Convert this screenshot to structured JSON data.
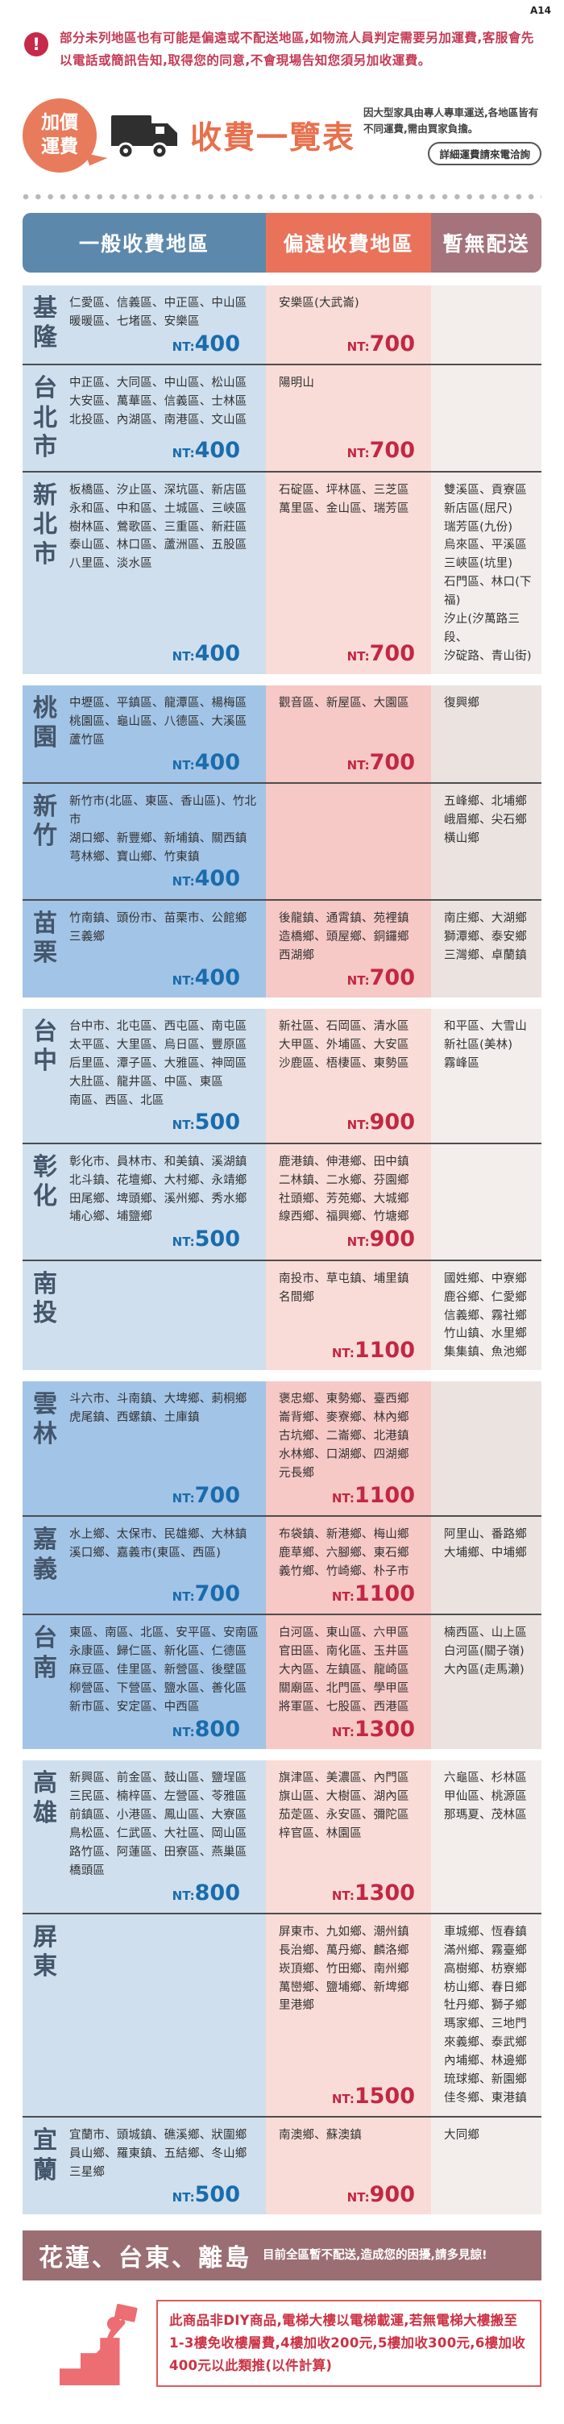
{
  "page_label": "A14",
  "warning": {
    "icon_glyph": "!",
    "text": "部分未列地區也有可能是偏遠或不配送地區,如物流人員判定需要另加運費,客服會先以電話或簡訊告知,取得您的同意,不會現場告知您須另加收運費。"
  },
  "header": {
    "badge": "加價\n運費",
    "title": "收費一覽表",
    "subtitle": "因大型家具由專人專車運送,各地區皆有不同運費,需由買家負擔。",
    "contact_pill": "詳細運費請來電洽詢"
  },
  "table": {
    "currency_prefix": "NT:",
    "columns": [
      "一般收費地區",
      "偏遠收費地區",
      "暫無配送"
    ],
    "groups": [
      {
        "shade": "light",
        "rows": [
          {
            "region": "基隆",
            "general": "仁愛區、信義區、中正區、中山區\n暖暖區、七堵區、安樂區",
            "general_price": "400",
            "remote": "安樂區(大武崙)",
            "remote_price": "700",
            "no_delivery": ""
          },
          {
            "region": "台北市",
            "general": "中正區、大同區、中山區、松山區\n大安區、萬華區、信義區、士林區\n北投區、內湖區、南港區、文山區",
            "general_price": "400",
            "remote": "陽明山",
            "remote_price": "700",
            "no_delivery": ""
          },
          {
            "region": "新北市",
            "general": "板橋區、汐止區、深坑區、新店區\n永和區、中和區、土城區、三峽區\n樹林區、鶯歌區、三重區、新莊區\n泰山區、林口區、蘆洲區、五股區\n八里區、淡水區",
            "general_price": "400",
            "remote": "石碇區、坪林區、三芝區\n萬里區、金山區、瑞芳區",
            "remote_price": "700",
            "no_delivery": "雙溪區、貢寮區\n新店區(屈尺)\n瑞芳區(九份)\n烏來區、平溪區\n三峽區(坑里)\n石門區、林口(下福)\n汐止(汐萬路三段、\n汐碇路、青山街)"
          }
        ]
      },
      {
        "shade": "dark",
        "rows": [
          {
            "region": "桃園",
            "general": "中壢區、平鎮區、龍潭區、楊梅區\n桃園區、龜山區、八德區、大溪區\n蘆竹區",
            "general_price": "400",
            "remote": "觀音區、新屋區、大園區",
            "remote_price": "700",
            "no_delivery": "復興鄉"
          },
          {
            "region": "新竹",
            "general": "新竹市(北區、東區、香山區)、竹北市\n湖口鄉、新豐鄉、新埔鎮、關西鎮\n芎林鄉、寶山鄉、竹東鎮",
            "general_price": "400",
            "remote": "",
            "remote_price": "",
            "no_delivery": "五峰鄉、北埔鄉\n峨眉鄉、尖石鄉\n橫山鄉"
          },
          {
            "region": "苗栗",
            "general": "竹南鎮、頭份市、苗栗市、公館鄉\n三義鄉",
            "general_price": "400",
            "remote": "後龍鎮、通霄鎮、苑裡鎮\n造橋鄉、頭屋鄉、銅鑼鄉\n西湖鄉",
            "remote_price": "700",
            "no_delivery": "南庄鄉、大湖鄉\n獅潭鄉、泰安鄉\n三灣鄉、卓蘭鎮"
          }
        ]
      },
      {
        "shade": "light",
        "rows": [
          {
            "region": "台中",
            "general": "台中市、北屯區、西屯區、南屯區\n太平區、大里區、烏日區、豐原區\n后里區、潭子區、大雅區、神岡區\n大肚區、龍井區、中區、東區\n南區、西區、北區",
            "general_price": "500",
            "remote": "新社區、石岡區、清水區\n大甲區、外埔區、大安區\n沙鹿區、梧棲區、東勢區",
            "remote_price": "900",
            "no_delivery": "和平區、大雪山\n新社區(美林)\n霧峰區"
          },
          {
            "region": "彰化",
            "general": "彰化市、員林市、和美鎮、溪湖鎮\n北斗鎮、花壇鄉、大村鄉、永靖鄉\n田尾鄉、埤頭鄉、溪州鄉、秀水鄉\n埔心鄉、埔鹽鄉",
            "general_price": "500",
            "remote": "鹿港鎮、伸港鄉、田中鎮\n二林鎮、二水鄉、芬園鄉\n社頭鄉、芳苑鄉、大城鄉\n線西鄉、福興鄉、竹塘鄉",
            "remote_price": "900",
            "no_delivery": ""
          },
          {
            "region": "南投",
            "general": "",
            "general_price": "",
            "remote": "南投市、草屯鎮、埔里鎮\n名間鄉",
            "remote_price": "1100",
            "no_delivery": "國姓鄉、中寮鄉\n鹿谷鄉、仁愛鄉\n信義鄉、霧社鄉\n竹山鎮、水里鄉\n集集鎮、魚池鄉"
          }
        ]
      },
      {
        "shade": "dark",
        "rows": [
          {
            "region": "雲林",
            "general": "斗六市、斗南鎮、大埤鄉、莿桐鄉\n虎尾鎮、西螺鎮、土庫鎮",
            "general_price": "700",
            "remote": "褒忠鄉、東勢鄉、臺西鄉\n崙背鄉、麥寮鄉、林內鄉\n古坑鄉、二崙鄉、北港鎮\n水林鄉、口湖鄉、四湖鄉\n元長鄉",
            "remote_price": "1100",
            "no_delivery": ""
          },
          {
            "region": "嘉義",
            "general": "水上鄉、太保市、民雄鄉、大林鎮\n溪口鄉、嘉義市(東區、西區)",
            "general_price": "700",
            "remote": "布袋鎮、新港鄉、梅山鄉\n鹿草鄉、六腳鄉、東石鄉\n義竹鄉、竹崎鄉、朴子市",
            "remote_price": "1100",
            "no_delivery": "阿里山、番路鄉\n大埔鄉、中埔鄉"
          },
          {
            "region": "台南",
            "general": "東區、南區、北區、安平區、安南區\n永康區、歸仁區、新化區、仁德區\n麻豆區、佳里區、新營區、後壁區\n柳營區、下營區、鹽水區、善化區\n新市區、安定區、中西區",
            "general_price": "800",
            "remote": "白河區、東山區、六甲區\n官田區、南化區、玉井區\n大內區、左鎮區、龍崎區\n關廟區、北門區、學甲區\n將軍區、七股區、西港區",
            "remote_price": "1300",
            "no_delivery": "楠西區、山上區\n白河區(關子嶺)\n大內區(走馬瀨)"
          }
        ]
      },
      {
        "shade": "light",
        "rows": [
          {
            "region": "高雄",
            "general": "新興區、前金區、鼓山區、鹽埕區\n三民區、楠梓區、左營區、苓雅區\n前鎮區、小港區、鳳山區、大寮區\n鳥松區、仁武區、大社區、岡山區\n路竹區、阿蓮區、田寮區、燕巢區\n橋頭區",
            "general_price": "800",
            "remote": "旗津區、美濃區、內門區\n旗山區、大樹區、湖內區\n茄萣區、永安區、彌陀區\n梓官區、林園區",
            "remote_price": "1300",
            "no_delivery": "六龜區、杉林區\n甲仙區、桃源區\n那瑪夏、茂林區"
          },
          {
            "region": "屏東",
            "general": "",
            "general_price": "",
            "remote": "屏東市、九如鄉、潮州鎮\n長治鄉、萬丹鄉、麟洛鄉\n崁頂鄉、竹田鄉、南州鄉\n萬巒鄉、鹽埔鄉、新埤鄉\n里港鄉",
            "remote_price": "1500",
            "no_delivery": "車城鄉、恆春鎮\n滿州鄉、霧臺鄉\n高樹鄉、枋寮鄉\n枋山鄉、春日鄉\n牡丹鄉、獅子鄉\n瑪家鄉、三地門\n來義鄉、泰武鄉\n內埔鄉、林邊鄉\n琉球鄉、新園鄉\n佳冬鄉、東港鎮"
          },
          {
            "region": "宜蘭",
            "general": "宜蘭市、頭城鎮、礁溪鄉、狀圍鄉\n員山鄉、羅東鎮、五結鄉、冬山鄉\n三星鄉",
            "general_price": "500",
            "remote": "南澳鄉、蘇澳鎮",
            "remote_price": "900",
            "no_delivery": "大同鄉"
          }
        ]
      }
    ]
  },
  "footer_bar": {
    "title": "花蓮、台東、離島",
    "text": "目前全區暫不配送,造成您的困擾,請多見諒!"
  },
  "floor_notice": {
    "text": "此商品非DIY商品,電梯大樓以電梯載運,若無電梯大樓搬至1-3樓免收樓層費,4樓加收200元,5樓加收300元,6樓加收400元以此類推(以件計算)"
  }
}
